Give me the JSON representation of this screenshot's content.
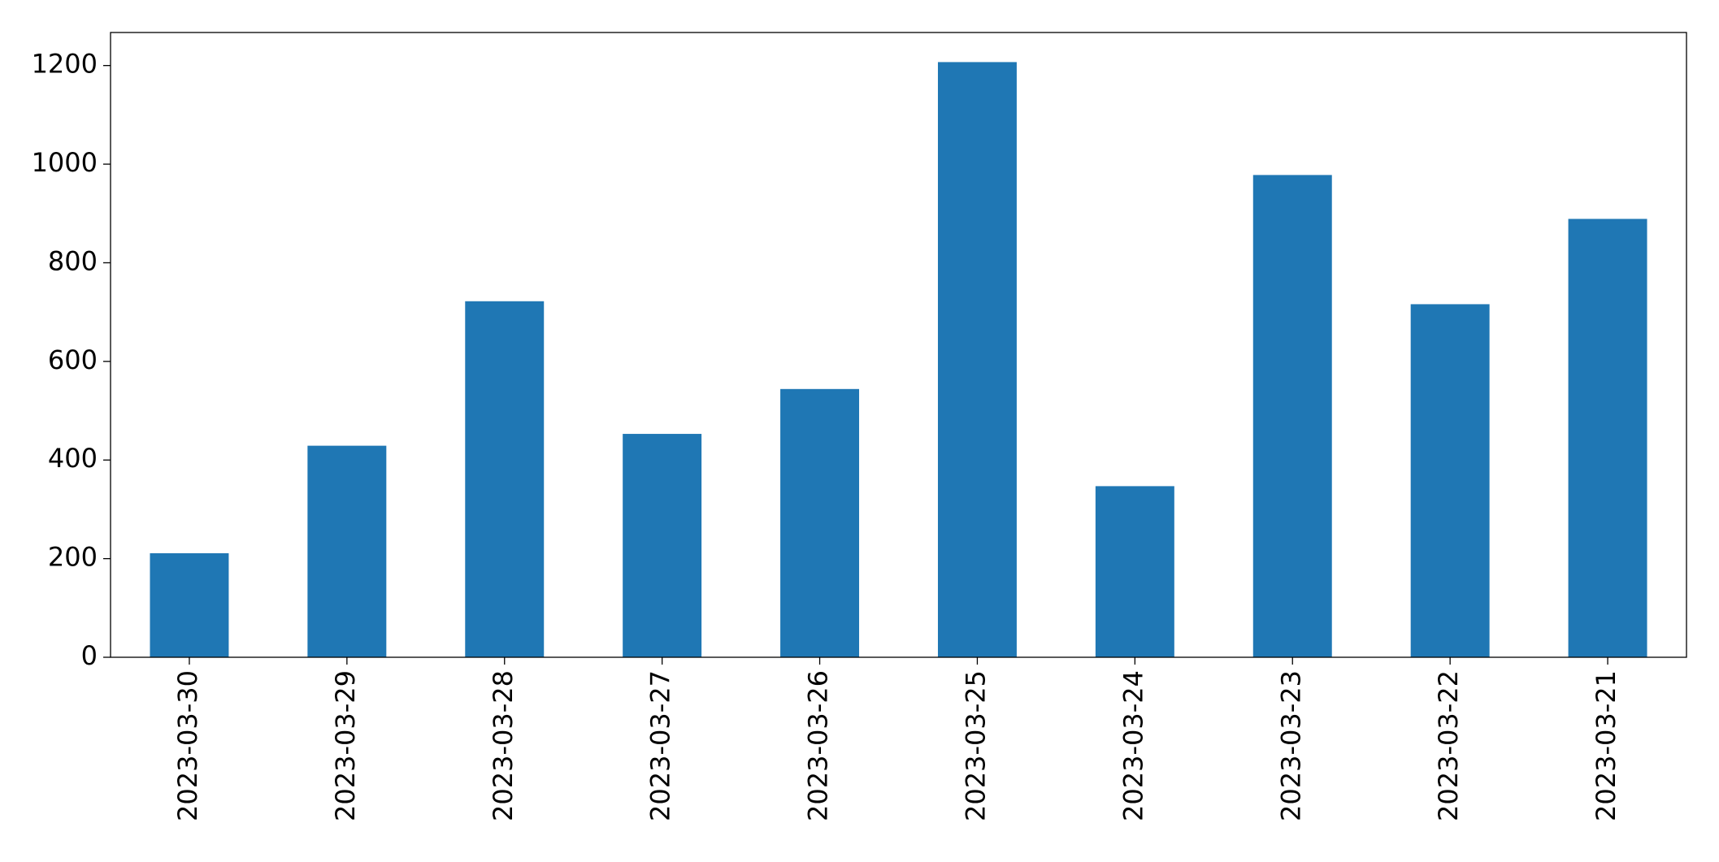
{
  "chart_data": {
    "type": "bar",
    "categories": [
      "2023-03-30",
      "2023-03-29",
      "2023-03-28",
      "2023-03-27",
      "2023-03-26",
      "2023-03-25",
      "2023-03-24",
      "2023-03-23",
      "2023-03-22",
      "2023-03-21"
    ],
    "values": [
      211,
      429,
      722,
      453,
      544,
      1207,
      347,
      978,
      716,
      889
    ],
    "color": "#1f77b4",
    "ylim": [
      0,
      1267
    ],
    "yticks": [
      0,
      200,
      400,
      600,
      800,
      1000,
      1200
    ],
    "grid": false
  }
}
